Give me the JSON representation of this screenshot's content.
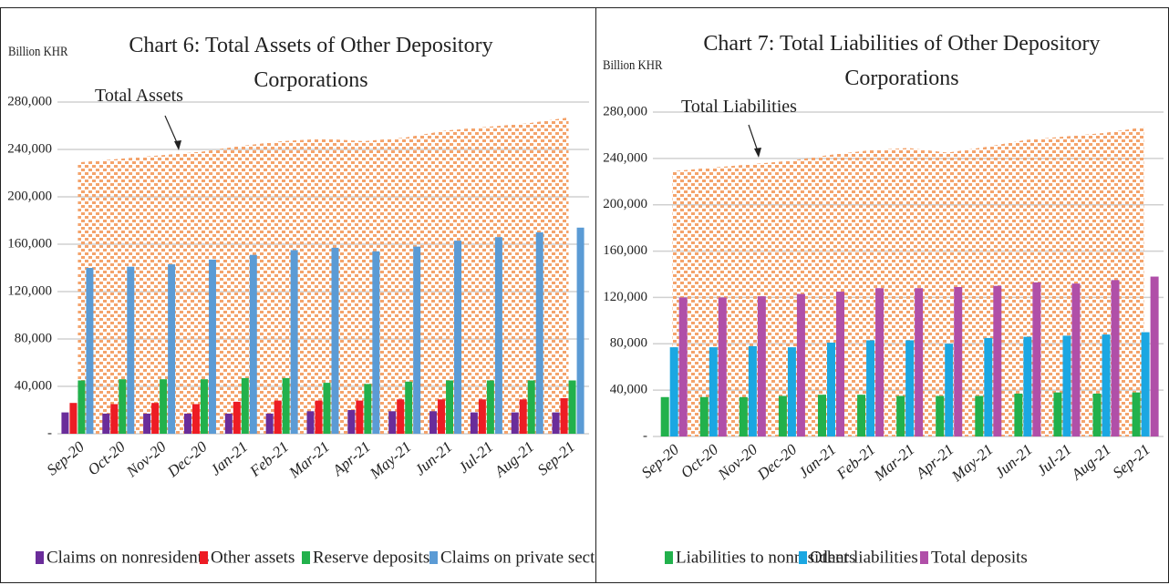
{
  "chart_data": [
    {
      "type": "bar",
      "title": "Chart 6: Total Assets of Other Depository Corporations",
      "ylabel": "Billion KHR",
      "categories": [
        "Sep-20",
        "Oct-20",
        "Nov-20",
        "Dec-20",
        "Jan-21",
        "Feb-21",
        "Mar-21",
        "Apr-21",
        "May-21",
        "Jun-21",
        "Jul-21",
        "Aug-21",
        "Sep-21"
      ],
      "area": {
        "name": "Total Assets",
        "color": "#f4a36b",
        "values": [
          229000,
          232000,
          235000,
          238000,
          243000,
          247000,
          249000,
          247000,
          250000,
          256000,
          259000,
          262000,
          267000
        ]
      },
      "series": [
        {
          "name": "Claims on nonresidents",
          "color": "#6a2c9a",
          "values": [
            18000,
            17000,
            17000,
            17000,
            17000,
            17000,
            19000,
            20000,
            19000,
            19000,
            18000,
            18000,
            18000
          ]
        },
        {
          "name": "Other assets",
          "color": "#ed1c24",
          "values": [
            26000,
            25000,
            26000,
            25000,
            27000,
            28000,
            28000,
            28000,
            29000,
            29000,
            29000,
            29000,
            30000
          ]
        },
        {
          "name": "Reserve deposits",
          "color": "#22b14c",
          "values": [
            45000,
            46000,
            46000,
            46000,
            47000,
            47000,
            43000,
            42000,
            44000,
            45000,
            45000,
            45000,
            45000
          ]
        },
        {
          "name": "Claims on private sector",
          "color": "#5b9bd5",
          "values": [
            140000,
            141000,
            143000,
            147000,
            151000,
            155000,
            157000,
            154000,
            158000,
            163000,
            166000,
            170000,
            174000
          ]
        }
      ],
      "ylim": [
        0,
        280000
      ],
      "yticks": [
        {
          "value": 0,
          "label": "-"
        },
        {
          "value": 40000,
          "label": "40,000"
        },
        {
          "value": 80000,
          "label": "80,000"
        },
        {
          "value": 120000,
          "label": "120,000"
        },
        {
          "value": 160000,
          "label": "160,000"
        },
        {
          "value": 200000,
          "label": "200,000"
        },
        {
          "value": 240000,
          "label": "240,000"
        },
        {
          "value": 280000,
          "label": "280,000"
        }
      ],
      "grid": true,
      "legend": "bottom"
    },
    {
      "type": "bar",
      "title": "Chart 7: Total Liabilities of Other Depository Corporations",
      "ylabel": "Billion KHR",
      "categories": [
        "Sep-20",
        "Oct-20",
        "Nov-20",
        "Dec-20",
        "Jan-21",
        "Feb-21",
        "Mar-21",
        "Apr-21",
        "May-21",
        "Jun-21",
        "Jul-21",
        "Aug-21",
        "Sep-21"
      ],
      "area": {
        "name": "Total Liabilities",
        "color": "#f4a36b",
        "values": [
          229000,
          232000,
          235000,
          238000,
          243000,
          247000,
          249000,
          245000,
          250000,
          256000,
          259000,
          262000,
          267000
        ]
      },
      "series": [
        {
          "name": "Liabilities to nonresidents",
          "color": "#22b14c",
          "values": [
            34000,
            34000,
            34000,
            35000,
            36000,
            36000,
            35000,
            35000,
            35000,
            37000,
            38000,
            37000,
            38000
          ]
        },
        {
          "name": "Other liabilities",
          "color": "#1ba7e2",
          "values": [
            77000,
            77000,
            78000,
            77000,
            81000,
            83000,
            83000,
            80000,
            85000,
            86000,
            87000,
            88000,
            90000
          ]
        },
        {
          "name": "Total deposits",
          "color": "#b04fa8",
          "values": [
            120000,
            120000,
            121000,
            123000,
            125000,
            128000,
            128000,
            129000,
            130000,
            133000,
            132000,
            135000,
            138000
          ]
        }
      ],
      "ylim": [
        0,
        280000
      ],
      "yticks": [
        {
          "value": 0,
          "label": "-"
        },
        {
          "value": 40000,
          "label": "40,000"
        },
        {
          "value": 80000,
          "label": "80,000"
        },
        {
          "value": 120000,
          "label": "120,000"
        },
        {
          "value": 160000,
          "label": "160,000"
        },
        {
          "value": 200000,
          "label": "200,000"
        },
        {
          "value": 240000,
          "label": "240,000"
        },
        {
          "value": 280000,
          "label": "280,000"
        }
      ],
      "grid": true,
      "legend": "bottom"
    }
  ]
}
